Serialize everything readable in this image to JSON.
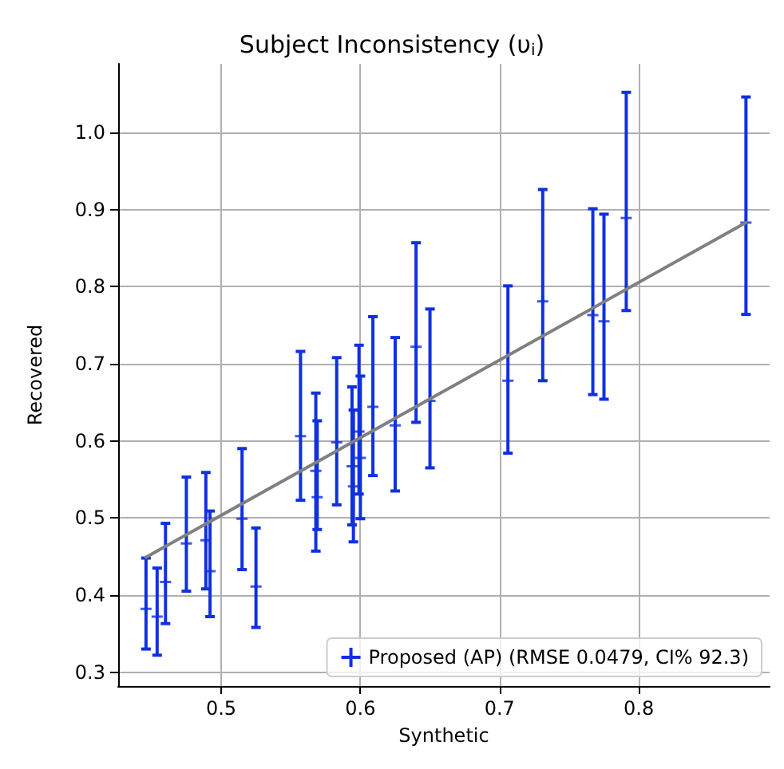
{
  "chart_data": {
    "type": "scatter",
    "title": "Subject Inconsistency (υ$_{i}$)",
    "xlabel": "Synthetic",
    "ylabel": "Recovered",
    "xlim": [
      0.426,
      0.894
    ],
    "ylim": [
      0.282,
      1.089
    ],
    "xticks": [
      0.5,
      0.6,
      0.7,
      0.8
    ],
    "yticks": [
      0.3,
      0.4,
      0.5,
      0.6,
      0.7,
      0.8,
      0.9,
      {
        "value": 1,
        "label": "1.0"
      }
    ],
    "grid": true,
    "legend": "bottom right",
    "marker": "cross",
    "series": [
      {
        "name": "Proposed (AP) (RMSE 0.0479, CI% 92.3)",
        "color": "#1030e0",
        "x": [
          0.446,
          0.454,
          0.46,
          0.475,
          0.489,
          0.492,
          0.515,
          0.525,
          0.557,
          0.568,
          0.569,
          0.583,
          0.594,
          0.595,
          0.599,
          0.6,
          0.609,
          0.625,
          0.64,
          0.65,
          0.706,
          0.731,
          0.767,
          0.775,
          0.791,
          0.877
        ],
        "values": [
          0.382,
          0.372,
          0.417,
          0.467,
          0.471,
          0.431,
          0.499,
          0.411,
          0.606,
          0.561,
          0.527,
          0.598,
          0.567,
          0.541,
          0.612,
          0.578,
          0.644,
          0.62,
          0.722,
          0.652,
          0.678,
          0.781,
          0.763,
          0.755,
          0.889,
          0.883
        ],
        "errors": [
          [
            0.33,
            0.448
          ],
          [
            0.322,
            0.435
          ],
          [
            0.363,
            0.493
          ],
          [
            0.405,
            0.553
          ],
          [
            0.408,
            0.559
          ],
          [
            0.372,
            0.509
          ],
          [
            0.433,
            0.59
          ],
          [
            0.358,
            0.487
          ],
          [
            0.523,
            0.716
          ],
          [
            0.457,
            0.662
          ],
          [
            0.485,
            0.626
          ],
          [
            0.517,
            0.708
          ],
          [
            0.491,
            0.67
          ],
          [
            0.469,
            0.64
          ],
          [
            0.531,
            0.724
          ],
          [
            0.499,
            0.684
          ],
          [
            0.555,
            0.761
          ],
          [
            0.535,
            0.734
          ],
          [
            0.624,
            0.857
          ],
          [
            0.565,
            0.771
          ],
          [
            0.584,
            0.801
          ],
          [
            0.678,
            0.926
          ],
          [
            0.66,
            0.901
          ],
          [
            0.654,
            0.894
          ],
          [
            0.769,
            1.052
          ],
          [
            0.764,
            1.046
          ]
        ]
      },
      {
        "type": "line",
        "color": "#808080",
        "marker": "none",
        "x": [
          0.446,
          0.877
        ],
        "values": [
          0.449,
          0.883
        ]
      }
    ]
  }
}
